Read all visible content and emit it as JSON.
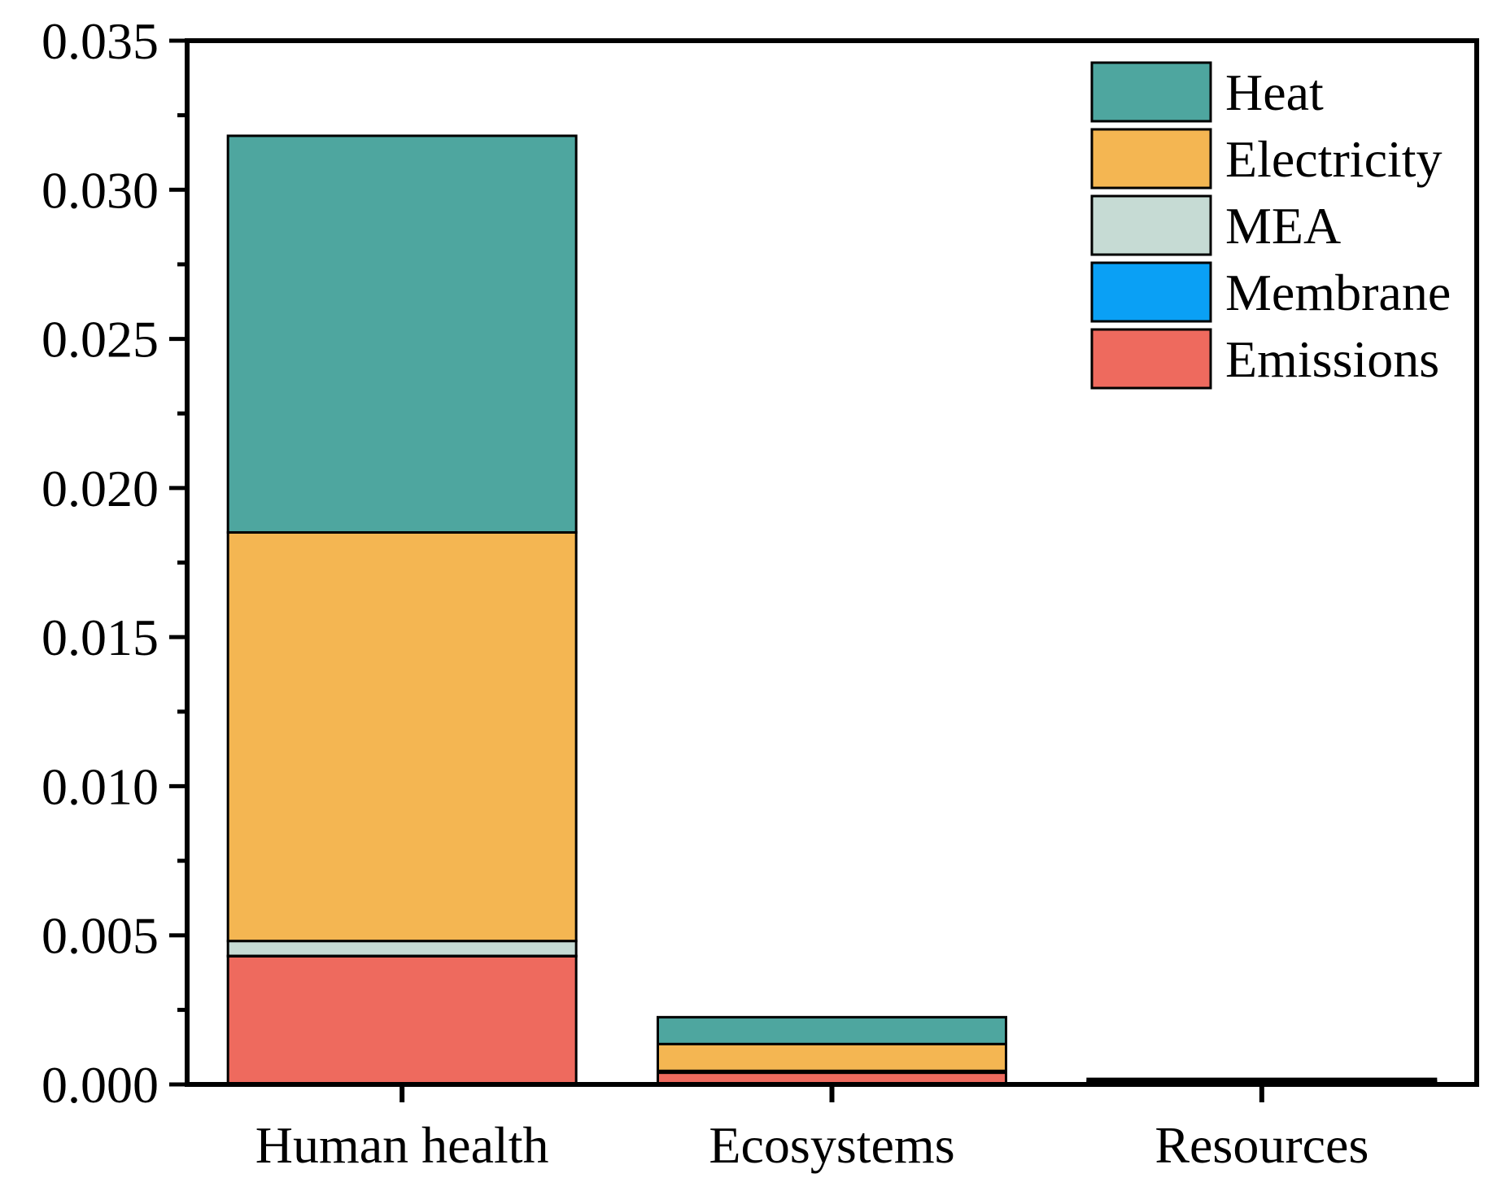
{
  "chart_data": {
    "type": "bar",
    "stacked": true,
    "title": "",
    "xlabel": "",
    "ylabel": "",
    "ylim": [
      0,
      0.035
    ],
    "yticks": [
      "0.000",
      "0.005",
      "0.010",
      "0.015",
      "0.020",
      "0.025",
      "0.030",
      "0.035"
    ],
    "ytick_values": [
      0,
      0.005,
      0.01,
      0.015,
      0.02,
      0.025,
      0.03,
      0.035
    ],
    "categories": [
      "Human health",
      "Ecosystems",
      "Resources"
    ],
    "legend_position": "top-right",
    "series": [
      {
        "name": "Emissions",
        "color": "#ee6a5e",
        "values": [
          0.0043,
          0.0004,
          4e-05
        ]
      },
      {
        "name": "Membrane",
        "color": "#0aa0f5",
        "values": [
          1e-05,
          5e-06,
          2e-06
        ]
      },
      {
        "name": "MEA",
        "color": "#c6dbd4",
        "values": [
          0.0005,
          5e-05,
          5e-06
        ]
      },
      {
        "name": "Electricity",
        "color": "#f4b652",
        "values": [
          0.0137,
          0.0009,
          6e-05
        ]
      },
      {
        "name": "Heat",
        "color": "#4ea69f",
        "values": [
          0.0133,
          0.0009,
          8e-05
        ]
      }
    ],
    "legend_order": [
      "Heat",
      "Electricity",
      "MEA",
      "Membrane",
      "Emissions"
    ]
  }
}
